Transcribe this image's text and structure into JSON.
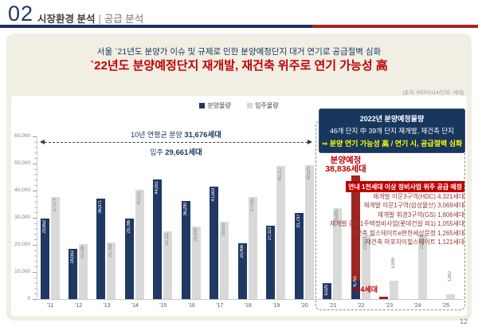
{
  "header": {
    "number": "02",
    "title": "시장환경 분석",
    "separator": "|",
    "subtitle": "공급 분석"
  },
  "callout": {
    "line1": "서울 `21년도 분양가 이슈 및 규제로 인한 분양예정단지 대거 연기로 공급절벽 심화",
    "line2": "`22년도 분양예정단지 재개발, 재건축 위주로 연기 가능성 高"
  },
  "source": "[출처: REPS114/단위: 세대]",
  "legend": [
    {
      "label": "분양물량",
      "color": "#1f3864"
    },
    {
      "label": "입주물량",
      "color": "#d9d9d9"
    }
  ],
  "avg": {
    "line1_label": "10년 연평균 분양",
    "line1_value": "31,676세대",
    "line2_label": "입주",
    "line2_value": "29,661세대"
  },
  "info_box": {
    "line1": "2022년 분양예정물량",
    "line2": "46개 단지 中 39개 단지 재개발, 재건축 단지",
    "line3": "⇒ 분양 연기 가능성 高 / 연기 시, 공급절벽 심화"
  },
  "expected_label": {
    "line1": "분양예정",
    "line2": "38,836세대"
  },
  "labels": {
    "small_bar": "954세대"
  },
  "supply_plan": {
    "headline": "연내 1천세대 이상 정비사업 위주 공급 예정",
    "items": [
      "재개발 이문3구역(HDC) 4,321세대",
      "재개발 이문1구역(삼성물산) 3,069세대",
      "재개발 휘경3구역(GS) 1,806세대",
      "재개발 중화1주택정비사업(롯데건설 외1) 1,055세대",
      "재건축 힐스테이트e편한세상문정 1,265세대",
      "재건축 마포자이힐스테이트 1,121세대"
    ]
  },
  "page_number": "12",
  "colors": {
    "navy": "#1f3864",
    "navy_dark": "#17375e",
    "bar_grey": "#d9d9d9",
    "bar_red": "#9e2623",
    "accent_red": "#c00000",
    "highlight_yellow": "#ffff00",
    "panel_beige": "#f1eee4"
  },
  "chart_data": {
    "type": "bar",
    "categories": [
      "'11",
      "'12",
      "'13",
      "'14",
      "'15",
      "'16",
      "'17",
      "'18",
      "'19",
      "'20",
      "'21",
      "'22",
      "'23",
      "'24",
      "'25"
    ],
    "series": [
      {
        "name": "분양물량",
        "color": "#1f3864",
        "values": [
          29652,
          18552,
          36971,
          29786,
          44051,
          36290,
          41503,
          20456,
          27113,
          31737,
          6020,
          6751,
          null,
          null,
          null
        ]
      },
      {
        "name": "분양예정",
        "color": "#9e2623",
        "stacked_on": "분양물량",
        "values": [
          null,
          null,
          null,
          null,
          null,
          null,
          null,
          null,
          null,
          null,
          null,
          38836,
          954,
          null,
          null
        ]
      },
      {
        "name": "입주물량",
        "color": "#d9d9d9",
        "values": [
          37574,
          20336,
          20768,
          40215,
          25111,
          26834,
          28616,
          37535,
          49217,
          49525,
          33495,
          23663,
          6886,
          23693,
          1882
        ]
      }
    ],
    "xlabel": "",
    "ylabel": "세대",
    "ylim": [
      0,
      60000
    ],
    "ytick_step": 10000,
    "grid": false,
    "legend_position": "top-center"
  }
}
